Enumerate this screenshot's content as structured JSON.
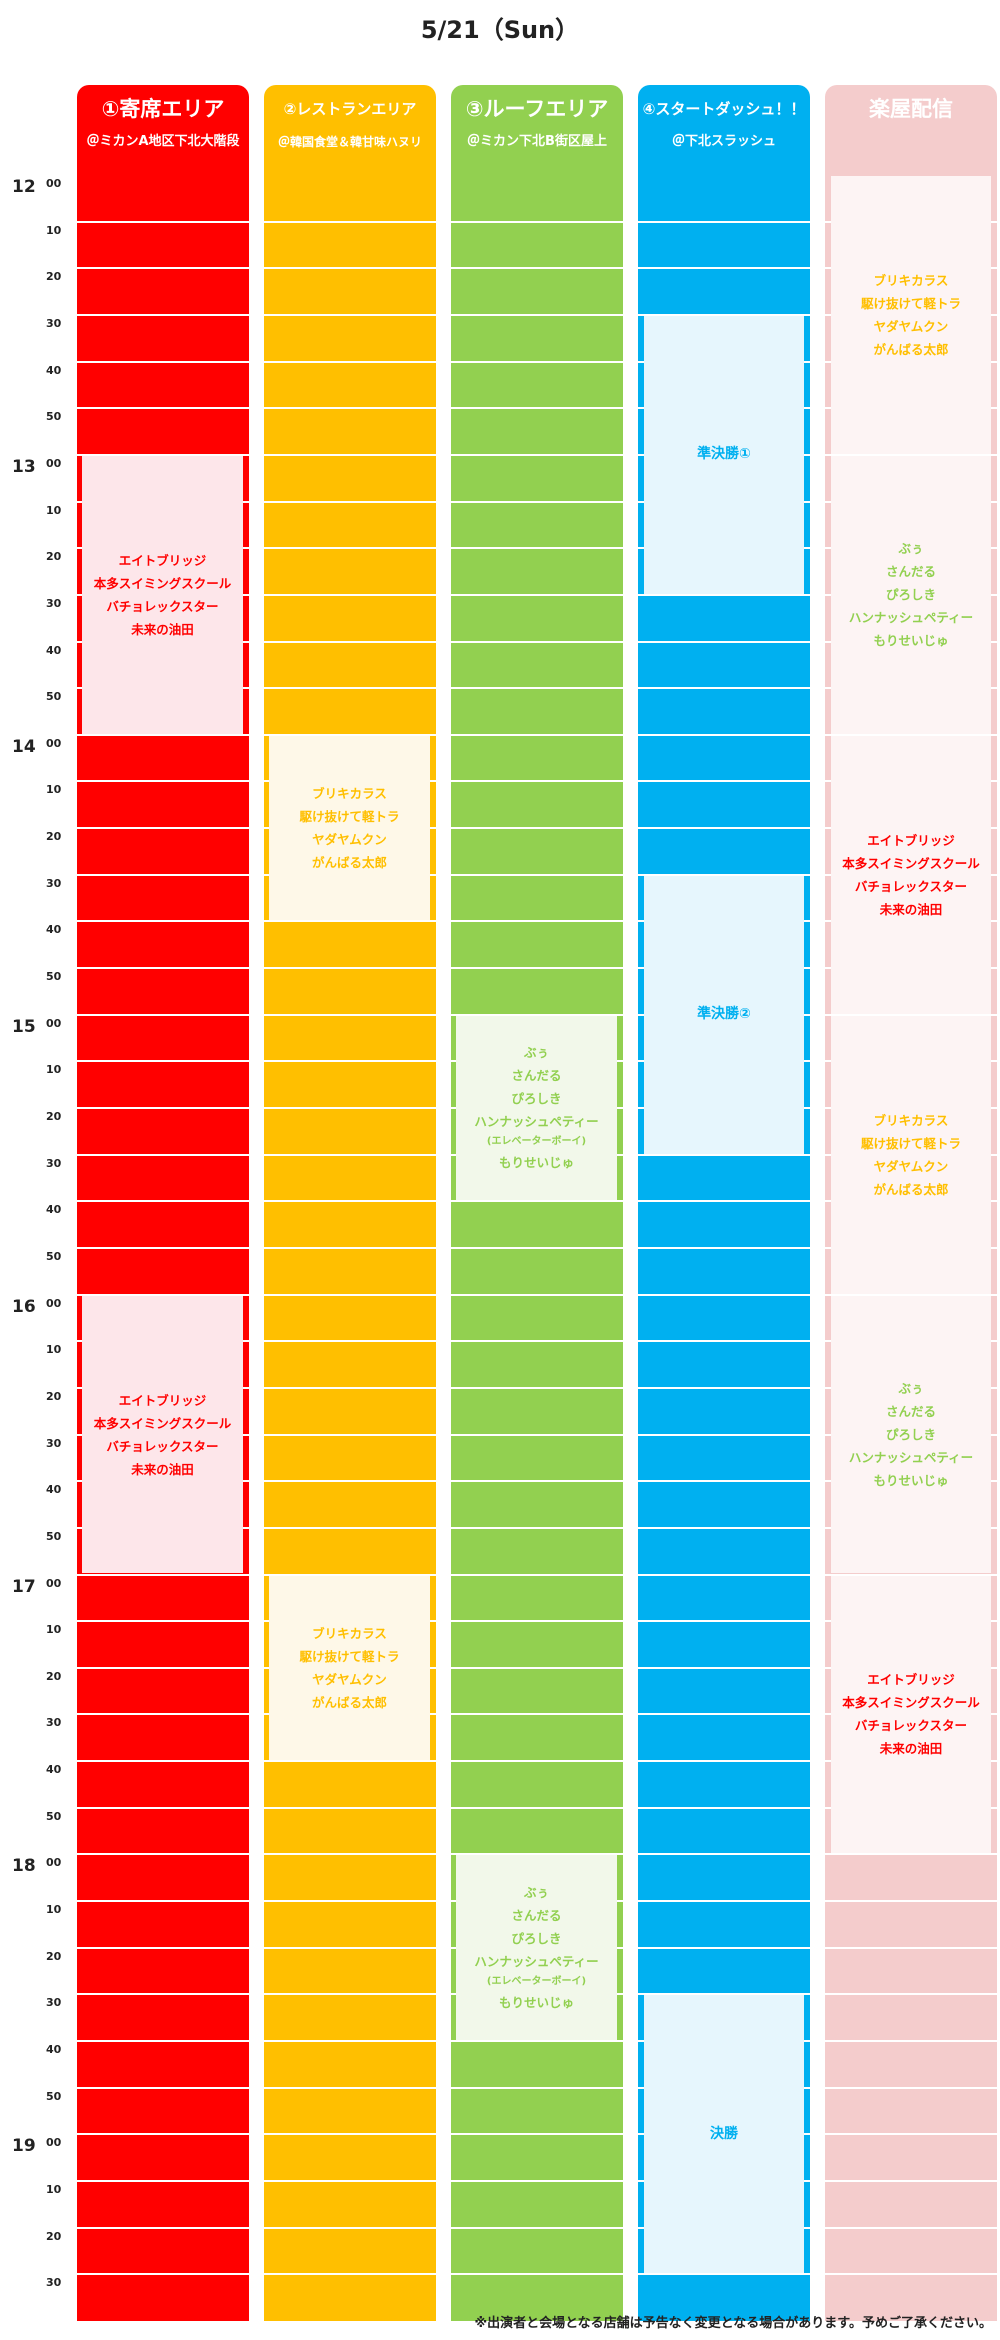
{
  "title": "5/21（Sun）",
  "time_axis": {
    "hours": [
      {
        "label": "12",
        "row": 0
      },
      {
        "label": "13",
        "row": 6
      },
      {
        "label": "14",
        "row": 12
      },
      {
        "label": "15",
        "row": 18
      },
      {
        "label": "16",
        "row": 24
      },
      {
        "label": "17",
        "row": 30
      },
      {
        "label": "18",
        "row": 36
      },
      {
        "label": "19",
        "row": 42
      }
    ],
    "minutes": [
      "00",
      "10",
      "20",
      "30",
      "40",
      "50"
    ],
    "row_count": 46
  },
  "colors": {
    "red": "#ff0000",
    "orange": "#ffbf00",
    "green": "#92d050",
    "blue": "#00b0f0",
    "pink": "#f4cccc",
    "pink_red": "#ff0000",
    "pink_red_text": "#ff0000",
    "red_block_bg": "#fde6ea",
    "orange_block_bg": "#fef8e8",
    "green_block_bg": "#f2f8ea",
    "blue_block_bg": "#e6f6fd",
    "pink_block_bg": "#fdf4f4",
    "orange_text": "#ffbf00",
    "green_text": "#92d050",
    "blue_text": "#00b0f0",
    "red_text": "#ff0000"
  },
  "columns": [
    {
      "key": "yose",
      "title": "①寄席エリア",
      "subtitle": "＠ミカンA地区下北大階段",
      "color": "#ff0000",
      "blocks": [
        {
          "start": 6,
          "end": 11,
          "style": "red",
          "lines": [
            "エイトブリッジ",
            "本多スイミングスクール",
            "バチョレックスター",
            "未来の油田"
          ]
        },
        {
          "start": 24,
          "end": 29,
          "style": "red",
          "lines": [
            "エイトブリッジ",
            "本多スイミングスクール",
            "バチョレックスター",
            "未来の油田"
          ]
        }
      ]
    },
    {
      "key": "restaurant",
      "title": "②レストランエリア",
      "subtitle": "＠韓国食堂＆韓甘味ハヌリ",
      "color": "#ffbf00",
      "blocks": [
        {
          "start": 12,
          "end": 15,
          "style": "orange",
          "lines": [
            "ブリキカラス",
            "駆け抜けて軽トラ",
            "ヤダヤムクン",
            "がんばる太郎"
          ]
        },
        {
          "start": 30,
          "end": 33,
          "style": "orange",
          "lines": [
            "ブリキカラス",
            "駆け抜けて軽トラ",
            "ヤダヤムクン",
            "がんばる太郎"
          ]
        }
      ]
    },
    {
      "key": "roof",
      "title": "③ルーフエリア",
      "subtitle": "＠ミカン下北B街区屋上",
      "color": "#92d050",
      "blocks": [
        {
          "start": 18,
          "end": 21,
          "style": "green",
          "lines": [
            "ぶぅ",
            "さんだる",
            "ぴろしき",
            "ハンナッシュペティー",
            "(エレベーターボーイ)",
            "もりせいじゅ"
          ],
          "small_index": 4
        },
        {
          "start": 36,
          "end": 39,
          "style": "green",
          "lines": [
            "ぶぅ",
            "さんだる",
            "ぴろしき",
            "ハンナッシュペティー",
            "(エレベーターボーイ)",
            "もりせいじゅ"
          ],
          "small_index": 4
        }
      ]
    },
    {
      "key": "startdash",
      "title": "④スタートダッシュ！！",
      "subtitle": "＠下北スラッシュ",
      "color": "#00b0f0",
      "blocks": [
        {
          "start": 3,
          "end": 8,
          "style": "blue",
          "big": true,
          "lines": [
            "準決勝①"
          ]
        },
        {
          "start": 15,
          "end": 20,
          "style": "blue",
          "big": true,
          "lines": [
            "準決勝②"
          ]
        },
        {
          "start": 39,
          "end": 44,
          "style": "blue",
          "big": true,
          "lines": [
            "決勝"
          ]
        }
      ]
    },
    {
      "key": "gakuya",
      "title": "楽屋配信",
      "subtitle": "",
      "color": "#f4cccc",
      "blocks": [
        {
          "start": 0,
          "end": 5,
          "style": "pink",
          "text_color": "#ffbf00",
          "lines": [
            "ブリキカラス",
            "駆け抜けて軽トラ",
            "ヤダヤムクン",
            "がんばる太郎"
          ]
        },
        {
          "start": 6,
          "end": 11,
          "style": "pink",
          "text_color": "#92d050",
          "lines": [
            "ぶぅ",
            "さんだる",
            "ぴろしき",
            "ハンナッシュペティー",
            "もりせいじゅ"
          ]
        },
        {
          "start": 12,
          "end": 17,
          "style": "pink",
          "text_color": "#ff0000",
          "lines": [
            "エイトブリッジ",
            "本多スイミングスクール",
            "バチョレックスター",
            "未来の油田"
          ]
        },
        {
          "start": 18,
          "end": 23,
          "style": "pink",
          "text_color": "#ffbf00",
          "lines": [
            "ブリキカラス",
            "駆け抜けて軽トラ",
            "ヤダヤムクン",
            "がんばる太郎"
          ]
        },
        {
          "start": 24,
          "end": 29,
          "style": "pink",
          "text_color": "#92d050",
          "lines": [
            "ぶぅ",
            "さんだる",
            "ぴろしき",
            "ハンナッシュペティー",
            "もりせいじゅ"
          ]
        },
        {
          "start": 30,
          "end": 35,
          "style": "pink",
          "text_color": "#ff0000",
          "lines": [
            "エイトブリッジ",
            "本多スイミングスクール",
            "バチョレックスター",
            "未来の油田"
          ]
        }
      ]
    }
  ],
  "footnote": "※出演者と会場となる店舗は予告なく変更となる場合があります。予めご了承ください。"
}
